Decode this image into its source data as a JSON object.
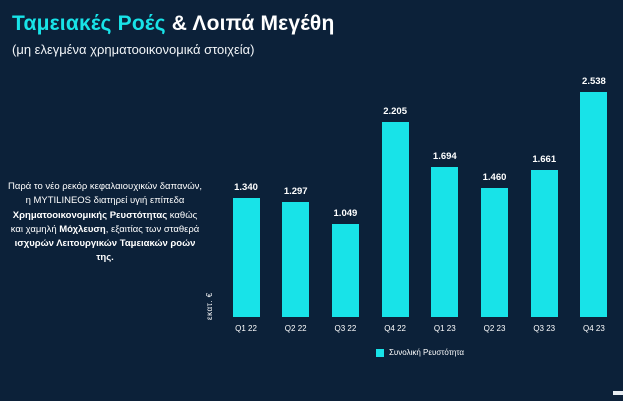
{
  "title": {
    "highlight": "Ταμειακές Ροές",
    "rest": "& Λοιπά Μεγέθη"
  },
  "subtitle": "(μη ελεγμένα χρηματοοικονομικά στοιχεία)",
  "note": {
    "segments": [
      {
        "text": "Παρά το νέο ρεκόρ κεφαλαιουχικών δαπανών, η MYTILINEOS διατηρεί υγιή επίπεδα ",
        "bold": false
      },
      {
        "text": "Χρηματοοικονομικής Ρευστότητας",
        "bold": true
      },
      {
        "text": " καθώς και χαμηλή ",
        "bold": false
      },
      {
        "text": "Μόχλευση",
        "bold": true
      },
      {
        "text": ", εξαιτίας των σταθερά ",
        "bold": false
      },
      {
        "text": "ισχυρών Λειτουργικών Ταμειακών ροών της.",
        "bold": true
      }
    ]
  },
  "chart_data": {
    "type": "bar",
    "categories": [
      "Q1 22",
      "Q2 22",
      "Q3 22",
      "Q4 22",
      "Q1 23",
      "Q2 23",
      "Q3 23",
      "Q4 23"
    ],
    "values": [
      1340,
      1297,
      1049,
      2205,
      1694,
      1460,
      1661,
      2538
    ],
    "value_labels": [
      "1.340",
      "1.297",
      "1.049",
      "2.205",
      "1.694",
      "1.460",
      "1.661",
      "2.538"
    ],
    "title": "Ταμειακές Ροές & Λοιπά Μεγέθη",
    "xlabel": "",
    "ylabel": "εκατ. €",
    "ylim": [
      0,
      2538
    ],
    "grid": false,
    "legend": [
      "Συνολική Ρευστότητα"
    ],
    "legend_position": "bottom"
  },
  "colors": {
    "background": "#0c2139",
    "bar": "#18e3e8",
    "accent": "#18e3e8",
    "text": "#ffffff"
  }
}
